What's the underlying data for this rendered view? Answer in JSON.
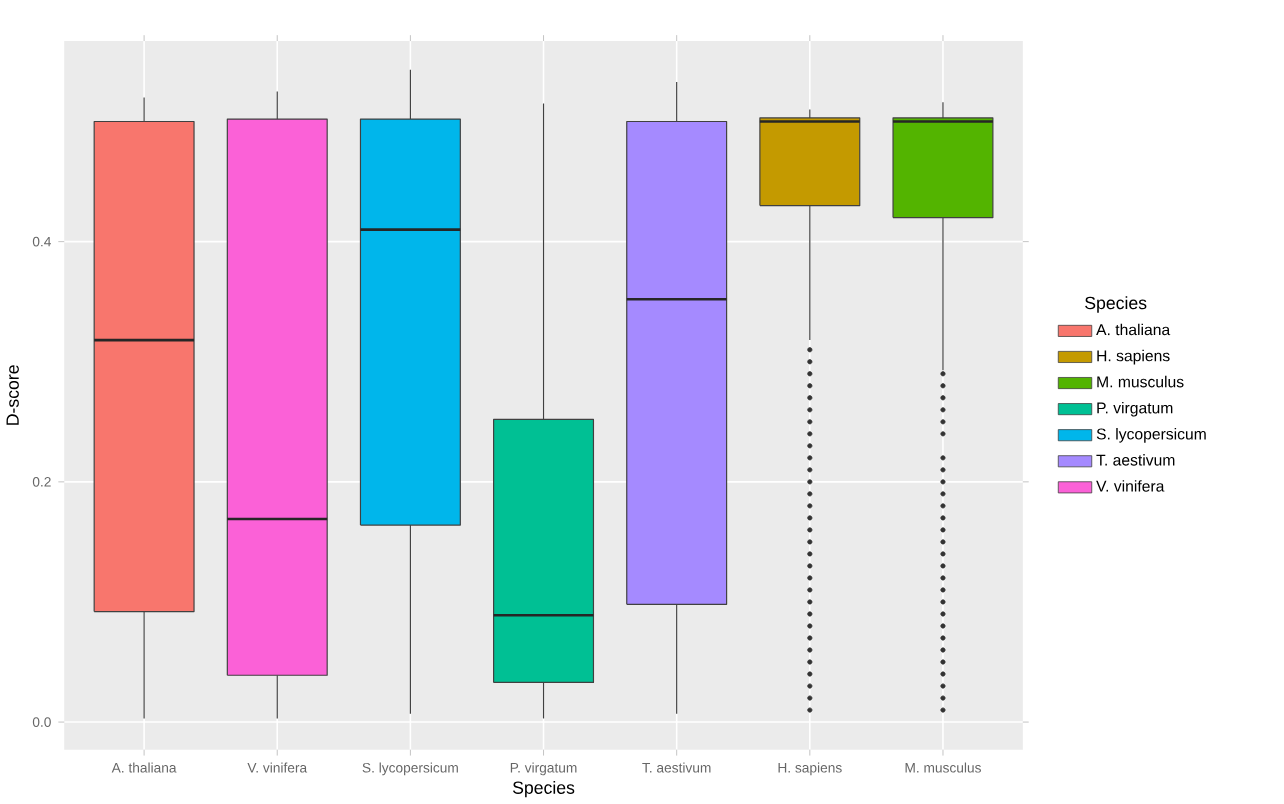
{
  "chart_data": {
    "type": "box",
    "xlabel": "Species",
    "ylabel": "D-score",
    "legend_title": "Species",
    "categories": [
      "A. thaliana",
      "V. vinifera",
      "S. lycopersicum",
      "P. virgatum",
      "T. aestivum",
      "H. sapiens",
      "M. musculus"
    ],
    "ylim": [
      -0.023,
      0.567
    ],
    "yticks": [
      {
        "value": 0,
        "label": "0.0"
      },
      {
        "value": 0.2,
        "label": "0.2"
      },
      {
        "value": 0.4,
        "label": "0.4"
      }
    ],
    "grid": true,
    "legend": "right",
    "series": [
      {
        "name": "A. thaliana",
        "color": "#f8766d",
        "boxes": [
          {
            "low": 0.003,
            "q1": 0.092,
            "median": 0.318,
            "q3": 0.5,
            "high": 0.52
          },
          null,
          null,
          null,
          null,
          null,
          null
        ]
      },
      {
        "name": "H. sapiens",
        "color": "#c49a00",
        "boxes": [
          null,
          null,
          null,
          null,
          null,
          {
            "low": 0.318,
            "q1": 0.43,
            "median": 0.5,
            "q3": 0.503,
            "high": 0.51,
            "outliers": [
              0.01,
              0.02,
              0.03,
              0.04,
              0.05,
              0.06,
              0.07,
              0.08,
              0.09,
              0.1,
              0.11,
              0.12,
              0.13,
              0.14,
              0.15,
              0.16,
              0.17,
              0.18,
              0.19,
              0.2,
              0.21,
              0.22,
              0.23,
              0.24,
              0.25,
              0.26,
              0.27,
              0.28,
              0.29,
              0.3,
              0.31
            ]
          },
          null
        ]
      },
      {
        "name": "M. musculus",
        "color": "#53b400",
        "boxes": [
          null,
          null,
          null,
          null,
          null,
          null,
          {
            "low": 0.293,
            "q1": 0.42,
            "median": 0.5,
            "q3": 0.503,
            "high": 0.516,
            "outliers": [
              0.01,
              0.02,
              0.03,
              0.04,
              0.05,
              0.06,
              0.07,
              0.08,
              0.09,
              0.1,
              0.11,
              0.12,
              0.13,
              0.14,
              0.15,
              0.16,
              0.17,
              0.18,
              0.19,
              0.2,
              0.21,
              0.22,
              0.24,
              0.25,
              0.26,
              0.27,
              0.28,
              0.29
            ]
          }
        ]
      },
      {
        "name": "P. virgatum",
        "color": "#00c094",
        "boxes": [
          null,
          null,
          null,
          {
            "low": 0.003,
            "q1": 0.033,
            "median": 0.089,
            "q3": 0.252,
            "high": 0.515
          },
          null,
          null,
          null
        ]
      },
      {
        "name": "S. lycopersicum",
        "color": "#00b6eb",
        "boxes": [
          null,
          null,
          {
            "low": 0.007,
            "q1": 0.164,
            "median": 0.41,
            "q3": 0.502,
            "high": 0.543
          },
          null,
          null,
          null,
          null
        ]
      },
      {
        "name": "T. aestivum",
        "color": "#a58aff",
        "boxes": [
          null,
          null,
          null,
          null,
          {
            "low": 0.007,
            "q1": 0.098,
            "median": 0.352,
            "q3": 0.5,
            "high": 0.533
          },
          null,
          null
        ]
      },
      {
        "name": "V. vinifera",
        "color": "#fb61d7",
        "boxes": [
          null,
          {
            "low": 0.003,
            "q1": 0.039,
            "median": 0.169,
            "q3": 0.502,
            "high": 0.525
          },
          null,
          null,
          null,
          null,
          null
        ]
      }
    ]
  }
}
